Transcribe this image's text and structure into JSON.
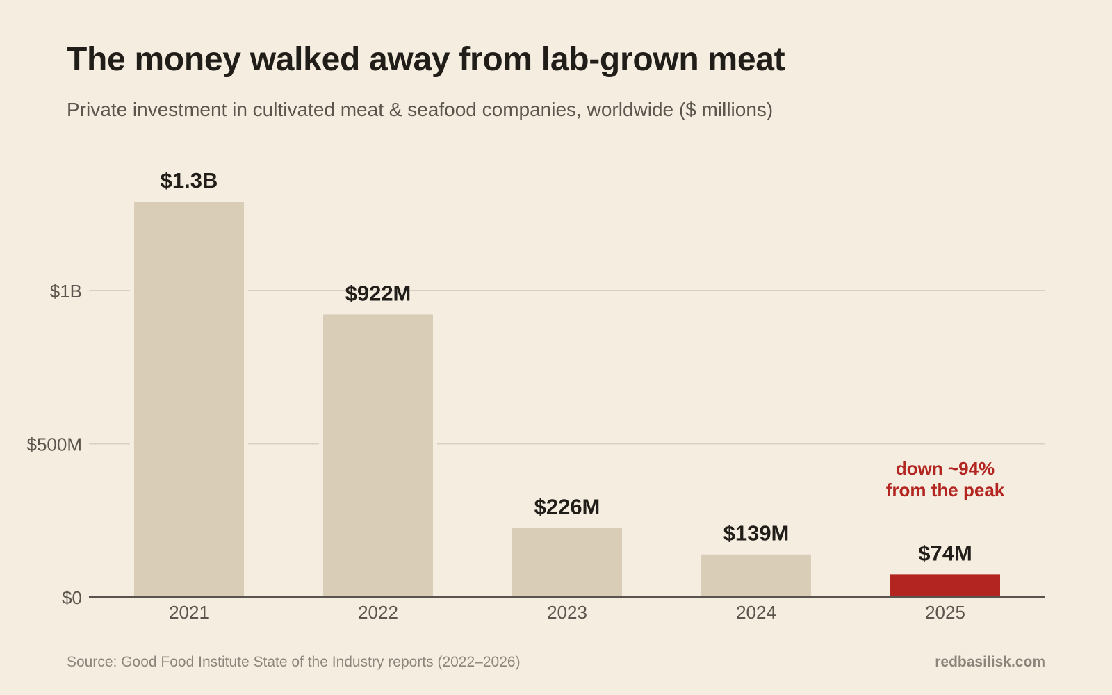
{
  "chart_data": {
    "type": "bar",
    "title": "The money walked away from lab-grown meat",
    "subtitle": "Private investment in cultivated meat & seafood companies, worldwide ($ millions)",
    "categories": [
      "2021",
      "2022",
      "2023",
      "2024",
      "2025"
    ],
    "values": [
      1290,
      922,
      226,
      139,
      74
    ],
    "value_labels": [
      "$1.3B",
      "$922M",
      "$226M",
      "$139M",
      "$74M"
    ],
    "ylim": [
      0,
      1400
    ],
    "y_ticks": [
      {
        "value": 0,
        "label": "$0"
      },
      {
        "value": 500,
        "label": "$500M"
      },
      {
        "value": 1000,
        "label": "$1B"
      }
    ],
    "grid": true,
    "highlight_index": 4,
    "annotation": {
      "lines": [
        "down ~94%",
        "from the peak"
      ],
      "category_index": 4
    },
    "colors": {
      "bar": "#d9cdb8",
      "highlight": "#b22520",
      "annotation": "#b22520",
      "grid": "#d9d0c2",
      "axis": "#5a544e",
      "label": "#211d19",
      "tick": "#5c554d"
    }
  },
  "footer": {
    "source": "Source: Good Food Institute State of the Industry reports (2022–2026)",
    "brand": "redbasilisk.com"
  }
}
